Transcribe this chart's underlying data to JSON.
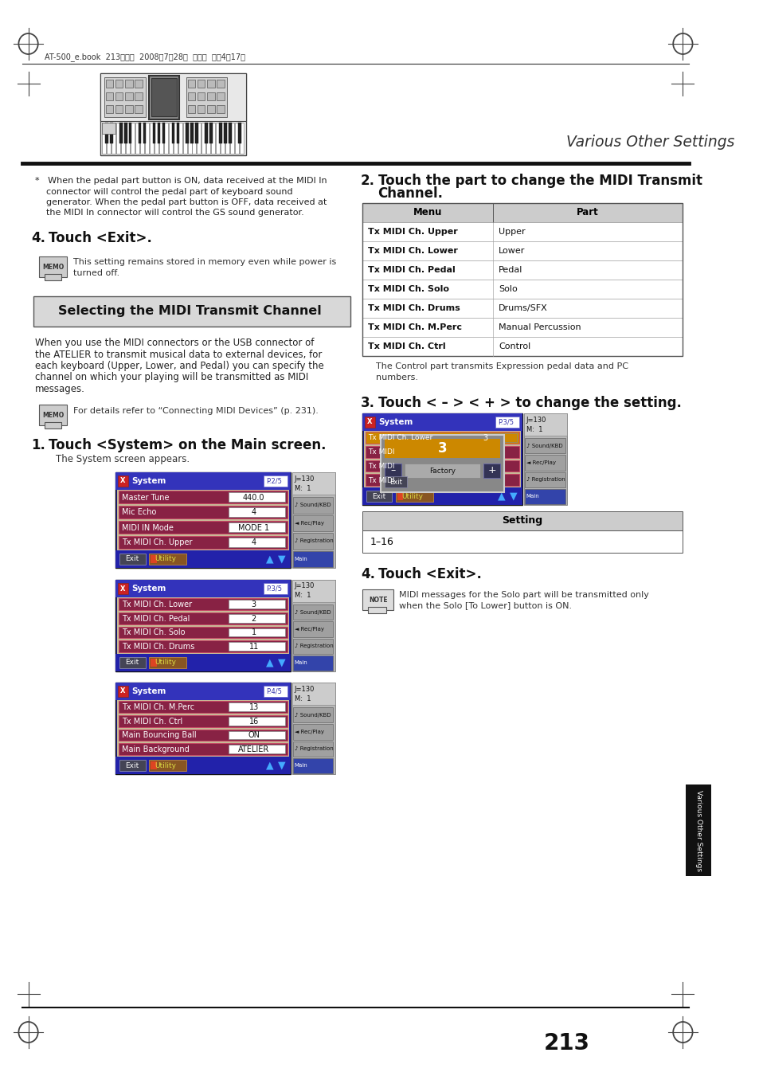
{
  "page_bg": "#ffffff",
  "header_text": "AT-500_e.book  213ページ  2008年7月28日  月曜日  午後4時17分",
  "header_right": "Various Other Settings",
  "section_title": "Selecting the MIDI Transmit Channel",
  "body_text_left": "When you use the MIDI connectors or the USB connector of\nthe ATELIER to transmit musical data to external devices, for\neach keyboard (Upper, Lower, and Pedal) you can specify the\nchannel on which your playing will be transmitted as MIDI\nmessages.",
  "memo_text_left": "For details refer to “Connecting MIDI Devices” (p. 231).",
  "step1_title": "1.  Touch <System> on the Main screen.",
  "step1_body": "The System screen appears.",
  "step2_title": "2.  Touch the part to change the MIDI Transmit\n    Channel.",
  "step3_title": "3.  Touch < – > < + > to change the setting.",
  "step4_title": "4.  Touch <Exit>.",
  "note4_text": "MIDI messages for the Solo part will be transmitted only\nwhen the Solo [To Lower] button is ON.",
  "bullet_text_1": "*   When the pedal part button is ON, data received at the MIDI In",
  "bullet_text_2": "    connector will control the pedal part of keyboard sound",
  "bullet_text_3": "    generator. When the pedal part button is OFF, data received at",
  "bullet_text_4": "    the MIDI In connector will control the GS sound generator.",
  "step4_left_title": "4.  Touch <Exit>.",
  "memo_text_left2_1": "This setting remains stored in memory even while power is",
  "memo_text_left2_2": "turned off.",
  "table_menu_col": [
    "Menu",
    "Tx MIDI Ch. Upper",
    "Tx MIDI Ch. Lower",
    "Tx MIDI Ch. Pedal",
    "Tx MIDI Ch. Solo",
    "Tx MIDI Ch. Drums",
    "Tx MIDI Ch. M.Perc",
    "Tx MIDI Ch. Ctrl"
  ],
  "table_part_col": [
    "Part",
    "Upper",
    "Lower",
    "Pedal",
    "Solo",
    "Drums/SFX",
    "Manual Percussion",
    "Control"
  ],
  "table_note_1": "The Control part transmits Expression pedal data and PC",
  "table_note_2": "numbers.",
  "setting_label": "Setting",
  "setting_value": "1–16",
  "page_number": "213",
  "sidebar_text": "Various Other Settings",
  "col_divider": 477
}
